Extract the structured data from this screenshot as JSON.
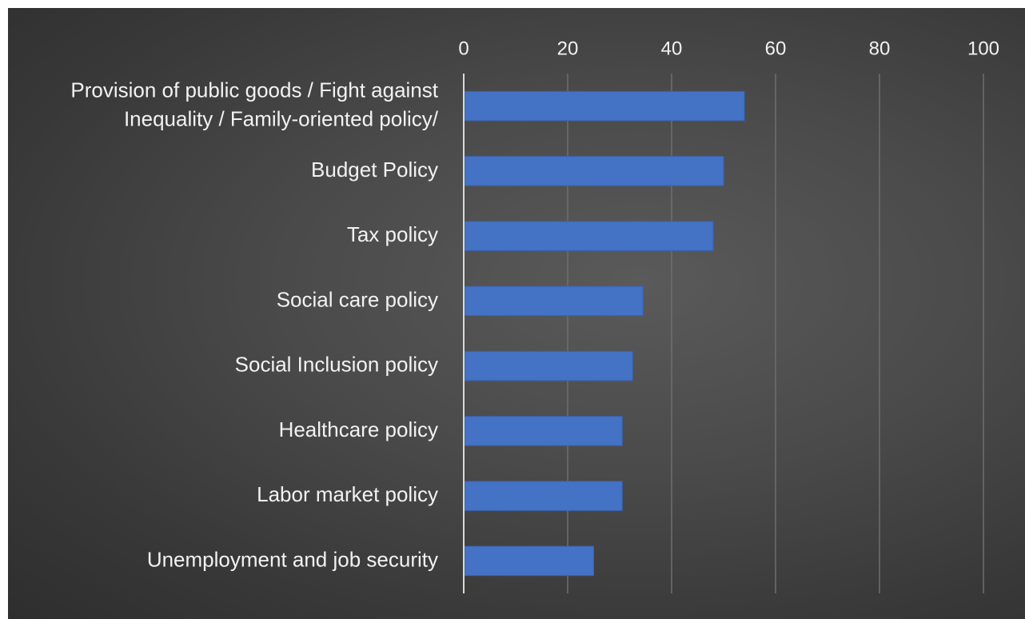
{
  "chart_data": {
    "type": "bar",
    "orientation": "horizontal",
    "xaxis_position": "top",
    "grid": true,
    "xlim": [
      0,
      100
    ],
    "x_ticks": [
      "0",
      "20",
      "40",
      "60",
      "80",
      "100"
    ],
    "categories": [
      [
        "Provision of public goods / Fight against",
        "Inequality / Family-oriented policy/"
      ],
      [
        "Budget Policy"
      ],
      [
        "Tax policy"
      ],
      [
        "Social care policy"
      ],
      [
        "Social Inclusion policy"
      ],
      [
        "Healthcare policy"
      ],
      [
        "Labor market policy"
      ],
      [
        "Unemployment and job security"
      ]
    ],
    "values": [
      54,
      50,
      48,
      34.5,
      32.5,
      30.5,
      30.5,
      25
    ],
    "colors": {
      "bar": "#4472c4",
      "bar_edge": "#3a62ad",
      "grid": "#6e6e6e",
      "axis": "#d9d9d9",
      "text": "#f2f2f2"
    }
  }
}
